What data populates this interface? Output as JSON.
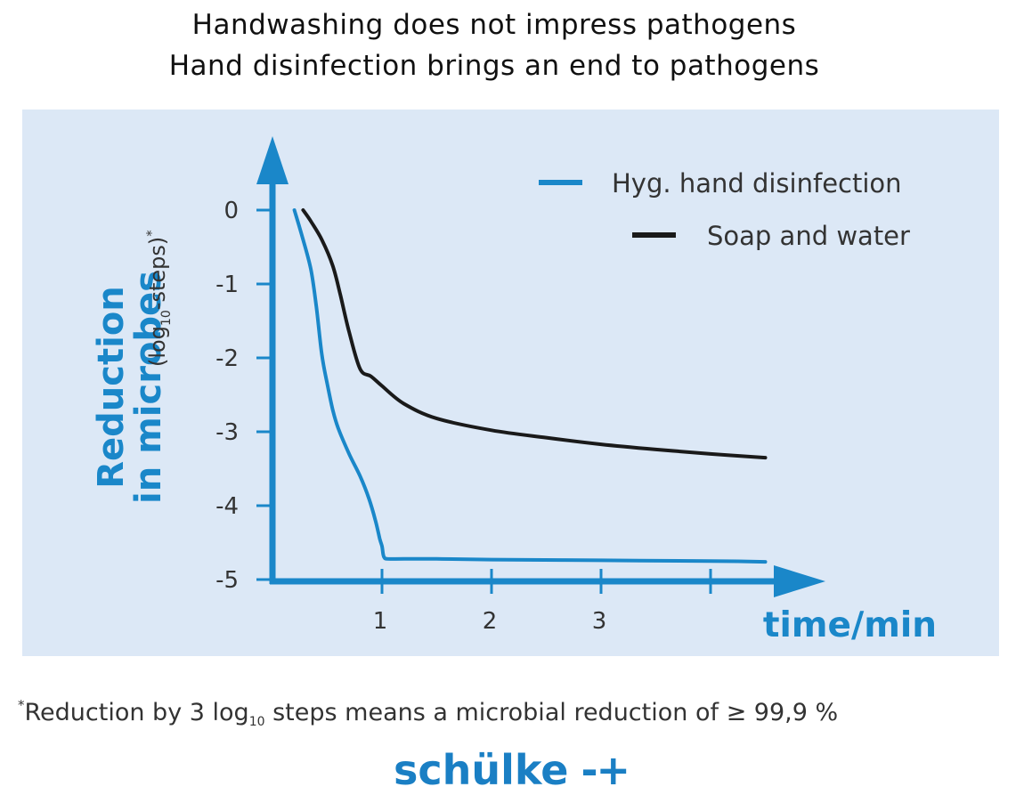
{
  "chart_data": {
    "type": "line",
    "title": "Handwashing does not impress pathogens",
    "subtitle": "Hand disinfection brings an end to pathogens",
    "ylabel_line1": "Reduction",
    "ylabel_line2": "in microbes",
    "ylabel_units_prefix": "(log",
    "ylabel_units_sub": "10",
    "ylabel_units_suffix": "-steps)",
    "ylabel_units_mark": "*",
    "xlabel": "time/min",
    "x_ticks": [
      1,
      2,
      3,
      4
    ],
    "x_tick_labels": [
      "1",
      "2",
      "3",
      ""
    ],
    "y_ticks": [
      0,
      -1,
      -2,
      -3,
      -4,
      -5
    ],
    "y_tick_labels": [
      "0",
      "-1",
      "-2",
      "-3",
      "-4",
      "-5"
    ],
    "xlim": [
      0,
      4.6
    ],
    "ylim": [
      -5,
      0
    ],
    "legend_position": "top-right",
    "series": [
      {
        "name": "Hyg. hand disinfection",
        "color": "#1a87c9",
        "x": [
          0.2,
          0.27,
          0.35,
          0.4,
          0.45,
          0.5,
          0.55,
          0.6,
          0.7,
          0.8,
          0.88,
          0.94,
          0.98,
          1.0,
          1.01,
          1.02,
          1.05,
          1.2,
          1.5,
          2.0,
          3.0,
          4.0,
          4.5
        ],
        "y": [
          0.0,
          -0.35,
          -0.8,
          -1.3,
          -1.95,
          -2.35,
          -2.7,
          -2.95,
          -3.3,
          -3.6,
          -3.9,
          -4.2,
          -4.45,
          -4.55,
          -4.65,
          -4.7,
          -4.72,
          -4.72,
          -4.72,
          -4.73,
          -4.74,
          -4.75,
          -4.76
        ]
      },
      {
        "name": "Soap and water",
        "color": "#1a1a1a",
        "x": [
          0.28,
          0.35,
          0.45,
          0.55,
          0.62,
          0.7,
          0.8,
          0.9,
          1.0,
          1.2,
          1.5,
          2.0,
          2.5,
          3.0,
          3.5,
          4.0,
          4.5
        ],
        "y": [
          0.0,
          -0.15,
          -0.4,
          -0.75,
          -1.15,
          -1.65,
          -2.15,
          -2.25,
          -2.38,
          -2.62,
          -2.82,
          -2.98,
          -3.08,
          -3.17,
          -3.24,
          -3.3,
          -3.35
        ]
      }
    ]
  },
  "footnote": {
    "mark": "*",
    "text_before": "Reduction by 3 log",
    "subscript": "10",
    "text_after": " steps means a microbial reduction of  ≥ 99,9 %"
  },
  "brand": {
    "name": "schülke",
    "icon": "-+"
  },
  "colors": {
    "accent": "#1a7fc4",
    "panel_bg": "#dce8f6",
    "axis": "#1a87c9"
  }
}
